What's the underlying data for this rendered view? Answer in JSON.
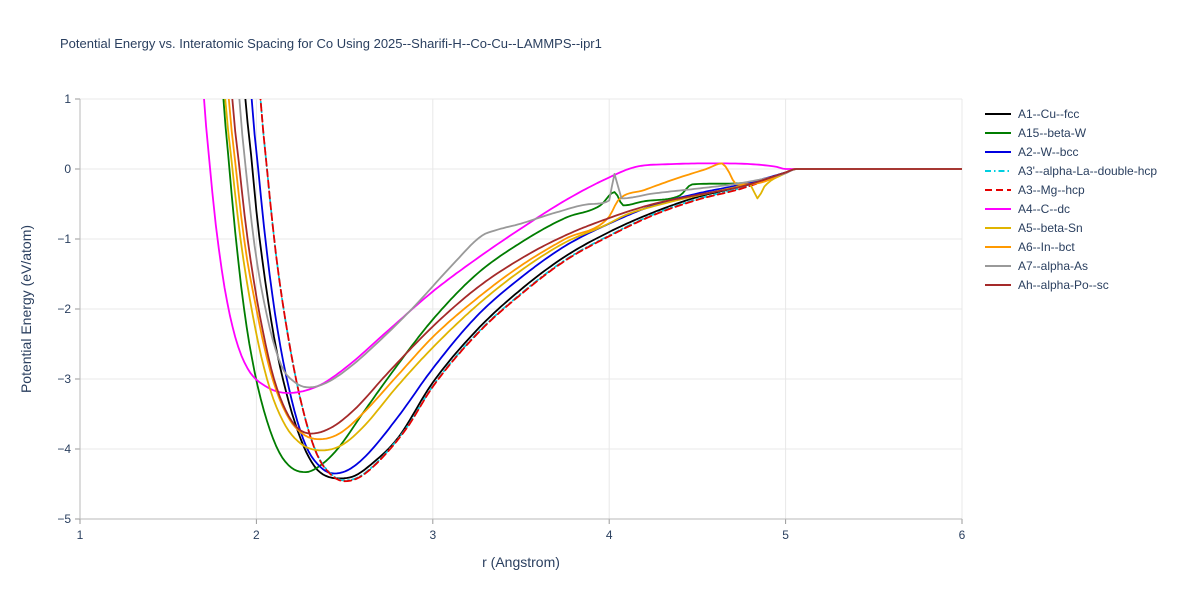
{
  "chart_data": {
    "type": "line",
    "title": "Potential Energy vs. Interatomic Spacing for Co Using 2025--Sharifi-H--Co-Cu--LAMMPS--ipr1",
    "xlabel": "r (Angstrom)",
    "ylabel": "Potential Energy (eV/atom)",
    "xlim": [
      1,
      6
    ],
    "ylim": [
      -5,
      1
    ],
    "xticks": [
      1,
      2,
      3,
      4,
      5,
      6
    ],
    "yticks": [
      -5,
      -4,
      -3,
      -2,
      -1,
      0,
      1
    ],
    "ytick_labels": [
      "−5",
      "−4",
      "−3",
      "−2",
      "−1",
      "0",
      "1"
    ],
    "grid": true,
    "legend_position": "right",
    "background_color": "#ffffff",
    "text_color": "#2a3f5f",
    "grid_color": "#e8e8e8",
    "axis_color": "#b8b8b8",
    "tick_color": "#999999",
    "series": [
      {
        "name": "A1--Cu--fcc",
        "color": "#000000",
        "dash": "solid",
        "points": [
          [
            1.9,
            2.5
          ],
          [
            1.93,
            1.2
          ],
          [
            1.97,
            0.2
          ],
          [
            2.0,
            -0.6
          ],
          [
            2.05,
            -1.6
          ],
          [
            2.1,
            -2.4
          ],
          [
            2.17,
            -3.2
          ],
          [
            2.25,
            -3.85
          ],
          [
            2.33,
            -4.25
          ],
          [
            2.41,
            -4.4
          ],
          [
            2.48,
            -4.42
          ],
          [
            2.56,
            -4.38
          ],
          [
            2.65,
            -4.22
          ],
          [
            2.8,
            -3.85
          ],
          [
            3.0,
            -3.05
          ],
          [
            3.25,
            -2.3
          ],
          [
            3.5,
            -1.72
          ],
          [
            3.75,
            -1.25
          ],
          [
            4.0,
            -0.9
          ],
          [
            4.25,
            -0.62
          ],
          [
            4.5,
            -0.4
          ],
          [
            4.7,
            -0.28
          ],
          [
            4.85,
            -0.18
          ],
          [
            5.0,
            -0.05
          ],
          [
            5.06,
            0.0
          ],
          [
            6.0,
            0.0
          ]
        ]
      },
      {
        "name": "A15--beta-W",
        "color": "#007d00",
        "dash": "solid",
        "points": [
          [
            1.78,
            2.5
          ],
          [
            1.81,
            1.1
          ],
          [
            1.84,
            0.2
          ],
          [
            1.88,
            -0.9
          ],
          [
            1.93,
            -2.0
          ],
          [
            1.99,
            -2.9
          ],
          [
            2.06,
            -3.6
          ],
          [
            2.13,
            -4.05
          ],
          [
            2.2,
            -4.27
          ],
          [
            2.28,
            -4.33
          ],
          [
            2.36,
            -4.24
          ],
          [
            2.46,
            -4.0
          ],
          [
            2.6,
            -3.5
          ],
          [
            2.8,
            -2.8
          ],
          [
            3.0,
            -2.15
          ],
          [
            3.25,
            -1.5
          ],
          [
            3.5,
            -1.05
          ],
          [
            3.75,
            -0.7
          ],
          [
            3.95,
            -0.52
          ],
          [
            4.03,
            -0.33
          ],
          [
            4.08,
            -0.52
          ],
          [
            4.2,
            -0.46
          ],
          [
            4.4,
            -0.38
          ],
          [
            4.47,
            -0.22
          ],
          [
            4.6,
            -0.21
          ],
          [
            4.8,
            -0.19
          ],
          [
            5.0,
            -0.05
          ],
          [
            5.06,
            0.0
          ],
          [
            6.0,
            0.0
          ]
        ]
      },
      {
        "name": "A2--W--bcc",
        "color": "#0000e0",
        "dash": "solid",
        "points": [
          [
            1.94,
            2.5
          ],
          [
            1.97,
            1.1
          ],
          [
            2.01,
            0.0
          ],
          [
            2.06,
            -1.2
          ],
          [
            2.12,
            -2.3
          ],
          [
            2.2,
            -3.3
          ],
          [
            2.28,
            -3.95
          ],
          [
            2.36,
            -4.25
          ],
          [
            2.44,
            -4.35
          ],
          [
            2.52,
            -4.3
          ],
          [
            2.62,
            -4.1
          ],
          [
            2.8,
            -3.55
          ],
          [
            3.0,
            -2.85
          ],
          [
            3.25,
            -2.1
          ],
          [
            3.5,
            -1.55
          ],
          [
            3.75,
            -1.1
          ],
          [
            4.0,
            -0.78
          ],
          [
            4.25,
            -0.52
          ],
          [
            4.5,
            -0.35
          ],
          [
            4.75,
            -0.22
          ],
          [
            5.0,
            -0.05
          ],
          [
            5.06,
            0.0
          ],
          [
            6.0,
            0.0
          ]
        ]
      },
      {
        "name": "A3'--alpha-La--double-hcp",
        "color": "#00cfe0",
        "dash": "dashdot",
        "points": [
          [
            1.99,
            2.5
          ],
          [
            2.02,
            1.1
          ],
          [
            2.06,
            0.0
          ],
          [
            2.11,
            -1.2
          ],
          [
            2.18,
            -2.4
          ],
          [
            2.26,
            -3.4
          ],
          [
            2.34,
            -4.05
          ],
          [
            2.42,
            -4.35
          ],
          [
            2.5,
            -4.45
          ],
          [
            2.58,
            -4.4
          ],
          [
            2.68,
            -4.2
          ],
          [
            2.85,
            -3.7
          ],
          [
            3.0,
            -3.1
          ],
          [
            3.25,
            -2.35
          ],
          [
            3.5,
            -1.78
          ],
          [
            3.75,
            -1.3
          ],
          [
            4.0,
            -0.95
          ],
          [
            4.25,
            -0.65
          ],
          [
            4.5,
            -0.43
          ],
          [
            4.75,
            -0.27
          ],
          [
            5.0,
            -0.06
          ],
          [
            5.06,
            0.0
          ],
          [
            6.0,
            0.0
          ]
        ]
      },
      {
        "name": "A3--Mg--hcp",
        "color": "#e60000",
        "dash": "dash",
        "points": [
          [
            1.99,
            2.5
          ],
          [
            2.02,
            1.1
          ],
          [
            2.06,
            0.0
          ],
          [
            2.11,
            -1.2
          ],
          [
            2.18,
            -2.4
          ],
          [
            2.26,
            -3.4
          ],
          [
            2.34,
            -4.06
          ],
          [
            2.42,
            -4.36
          ],
          [
            2.5,
            -4.46
          ],
          [
            2.58,
            -4.41
          ],
          [
            2.68,
            -4.21
          ],
          [
            2.85,
            -3.71
          ],
          [
            3.0,
            -3.11
          ],
          [
            3.25,
            -2.36
          ],
          [
            3.5,
            -1.79
          ],
          [
            3.75,
            -1.31
          ],
          [
            4.0,
            -0.96
          ],
          [
            4.25,
            -0.66
          ],
          [
            4.5,
            -0.44
          ],
          [
            4.75,
            -0.28
          ],
          [
            5.0,
            -0.06
          ],
          [
            5.06,
            0.0
          ],
          [
            6.0,
            0.0
          ]
        ]
      },
      {
        "name": "A4--C--dc",
        "color": "#ff00ff",
        "dash": "solid",
        "points": [
          [
            1.67,
            2.5
          ],
          [
            1.7,
            1.1
          ],
          [
            1.73,
            0.2
          ],
          [
            1.77,
            -0.8
          ],
          [
            1.82,
            -1.7
          ],
          [
            1.88,
            -2.4
          ],
          [
            1.95,
            -2.85
          ],
          [
            2.05,
            -3.1
          ],
          [
            2.18,
            -3.2
          ],
          [
            2.35,
            -3.1
          ],
          [
            2.5,
            -2.85
          ],
          [
            2.75,
            -2.3
          ],
          [
            3.0,
            -1.75
          ],
          [
            3.25,
            -1.28
          ],
          [
            3.5,
            -0.85
          ],
          [
            3.75,
            -0.45
          ],
          [
            4.0,
            -0.12
          ],
          [
            4.15,
            0.03
          ],
          [
            4.35,
            0.07
          ],
          [
            4.6,
            0.08
          ],
          [
            4.8,
            0.07
          ],
          [
            4.95,
            0.03
          ],
          [
            5.0,
            0.0
          ],
          [
            6.0,
            0.0
          ]
        ]
      },
      {
        "name": "A5--beta-Sn",
        "color": "#e0b400",
        "dash": "solid",
        "points": [
          [
            1.79,
            2.5
          ],
          [
            1.82,
            1.1
          ],
          [
            1.86,
            0.1
          ],
          [
            1.91,
            -1.0
          ],
          [
            1.98,
            -2.1
          ],
          [
            2.06,
            -3.0
          ],
          [
            2.15,
            -3.6
          ],
          [
            2.25,
            -3.92
          ],
          [
            2.37,
            -4.02
          ],
          [
            2.48,
            -3.95
          ],
          [
            2.6,
            -3.7
          ],
          [
            2.8,
            -3.1
          ],
          [
            3.0,
            -2.55
          ],
          [
            3.25,
            -1.95
          ],
          [
            3.5,
            -1.45
          ],
          [
            3.75,
            -1.05
          ],
          [
            3.98,
            -0.8
          ],
          [
            4.1,
            -0.65
          ],
          [
            4.3,
            -0.5
          ],
          [
            4.5,
            -0.38
          ],
          [
            4.7,
            -0.27
          ],
          [
            4.8,
            -0.22
          ],
          [
            4.84,
            -0.42
          ],
          [
            4.88,
            -0.25
          ],
          [
            5.0,
            -0.06
          ],
          [
            5.06,
            0.0
          ],
          [
            6.0,
            0.0
          ]
        ]
      },
      {
        "name": "A6--In--bct",
        "color": "#ff9900",
        "dash": "solid",
        "points": [
          [
            1.81,
            2.5
          ],
          [
            1.84,
            1.1
          ],
          [
            1.88,
            0.1
          ],
          [
            1.93,
            -1.0
          ],
          [
            2.0,
            -2.0
          ],
          [
            2.08,
            -2.9
          ],
          [
            2.17,
            -3.5
          ],
          [
            2.26,
            -3.78
          ],
          [
            2.36,
            -3.86
          ],
          [
            2.47,
            -3.78
          ],
          [
            2.6,
            -3.5
          ],
          [
            2.8,
            -2.95
          ],
          [
            3.0,
            -2.4
          ],
          [
            3.25,
            -1.85
          ],
          [
            3.5,
            -1.38
          ],
          [
            3.75,
            -1.0
          ],
          [
            4.0,
            -0.68
          ],
          [
            4.05,
            -0.45
          ],
          [
            4.2,
            -0.3
          ],
          [
            4.4,
            -0.12
          ],
          [
            4.55,
            0.0
          ],
          [
            4.64,
            0.08
          ],
          [
            4.68,
            -0.05
          ],
          [
            4.72,
            -0.22
          ],
          [
            4.85,
            -0.2
          ],
          [
            5.0,
            -0.05
          ],
          [
            5.06,
            0.0
          ],
          [
            6.0,
            0.0
          ]
        ]
      },
      {
        "name": "A7--alpha-As",
        "color": "#999999",
        "dash": "solid",
        "points": [
          [
            1.87,
            2.5
          ],
          [
            1.9,
            1.1
          ],
          [
            1.94,
            0.0
          ],
          [
            1.99,
            -1.1
          ],
          [
            2.06,
            -2.1
          ],
          [
            2.14,
            -2.8
          ],
          [
            2.22,
            -3.05
          ],
          [
            2.3,
            -3.12
          ],
          [
            2.4,
            -3.05
          ],
          [
            2.52,
            -2.85
          ],
          [
            2.7,
            -2.45
          ],
          [
            2.9,
            -1.95
          ],
          [
            3.1,
            -1.4
          ],
          [
            3.28,
            -0.95
          ],
          [
            3.35,
            -0.88
          ],
          [
            3.5,
            -0.78
          ],
          [
            3.7,
            -0.62
          ],
          [
            3.9,
            -0.5
          ],
          [
            4.0,
            -0.45
          ],
          [
            4.03,
            -0.07
          ],
          [
            4.07,
            -0.42
          ],
          [
            4.25,
            -0.35
          ],
          [
            4.5,
            -0.28
          ],
          [
            4.75,
            -0.2
          ],
          [
            5.0,
            -0.06
          ],
          [
            5.06,
            0.0
          ],
          [
            6.0,
            0.0
          ]
        ]
      },
      {
        "name": "Ah--alpha-Po--sc",
        "color": "#a52a2a",
        "dash": "solid",
        "points": [
          [
            1.83,
            2.5
          ],
          [
            1.86,
            1.1
          ],
          [
            1.9,
            0.1
          ],
          [
            1.95,
            -1.0
          ],
          [
            2.02,
            -2.1
          ],
          [
            2.1,
            -3.0
          ],
          [
            2.2,
            -3.6
          ],
          [
            2.31,
            -3.78
          ],
          [
            2.42,
            -3.7
          ],
          [
            2.55,
            -3.45
          ],
          [
            2.75,
            -2.9
          ],
          [
            3.0,
            -2.25
          ],
          [
            3.25,
            -1.7
          ],
          [
            3.5,
            -1.28
          ],
          [
            3.75,
            -0.95
          ],
          [
            4.0,
            -0.7
          ],
          [
            4.25,
            -0.5
          ],
          [
            4.5,
            -0.37
          ],
          [
            4.75,
            -0.25
          ],
          [
            5.0,
            -0.05
          ],
          [
            5.06,
            0.0
          ],
          [
            6.0,
            0.0
          ]
        ]
      }
    ]
  }
}
